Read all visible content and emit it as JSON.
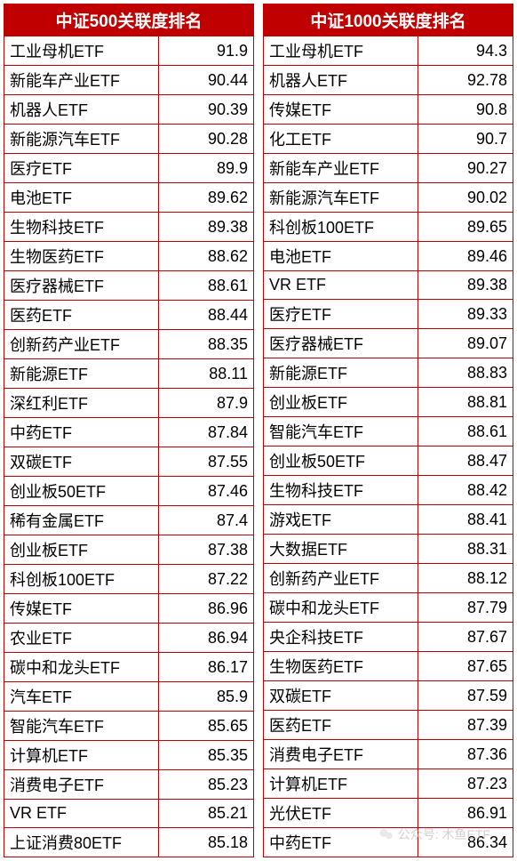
{
  "styling": {
    "header_bg": "#c00000",
    "header_text": "#ffffff",
    "border_color": "#c00000",
    "cell_text": "#000000",
    "background": "#ffffff",
    "font_family": "Microsoft YaHei",
    "header_fontsize": 19,
    "cell_fontsize": 18,
    "col_name_width_pct": 62,
    "col_val_width_pct": 38
  },
  "left_table": {
    "title": "中证500关联度排名",
    "rows": [
      {
        "name": "工业母机ETF",
        "val": "91.9"
      },
      {
        "name": "新能车产业ETF",
        "val": "90.44"
      },
      {
        "name": "机器人ETF",
        "val": "90.39"
      },
      {
        "name": "新能源汽车ETF",
        "val": "90.28"
      },
      {
        "name": "医疗ETF",
        "val": "89.9"
      },
      {
        "name": "电池ETF",
        "val": "89.62"
      },
      {
        "name": "生物科技ETF",
        "val": "89.38"
      },
      {
        "name": "生物医药ETF",
        "val": "88.62"
      },
      {
        "name": "医疗器械ETF",
        "val": "88.61"
      },
      {
        "name": "医药ETF",
        "val": "88.44"
      },
      {
        "name": "创新药产业ETF",
        "val": "88.35"
      },
      {
        "name": "新能源ETF",
        "val": "88.11"
      },
      {
        "name": "深红利ETF",
        "val": "87.9"
      },
      {
        "name": "中药ETF",
        "val": "87.84"
      },
      {
        "name": "双碳ETF",
        "val": "87.55"
      },
      {
        "name": "创业板50ETF",
        "val": "87.46"
      },
      {
        "name": "稀有金属ETF",
        "val": "87.4"
      },
      {
        "name": "创业板ETF",
        "val": "87.38"
      },
      {
        "name": "科创板100ETF",
        "val": "87.22"
      },
      {
        "name": "传媒ETF",
        "val": "86.96"
      },
      {
        "name": "农业ETF",
        "val": "86.94"
      },
      {
        "name": "碳中和龙头ETF",
        "val": "86.17"
      },
      {
        "name": "汽车ETF",
        "val": "85.9"
      },
      {
        "name": "智能汽车ETF",
        "val": "85.65"
      },
      {
        "name": "计算机ETF",
        "val": "85.35"
      },
      {
        "name": "消费电子ETF",
        "val": "85.23"
      },
      {
        "name": "VR ETF",
        "val": "85.21"
      },
      {
        "name": "上证消费80ETF",
        "val": "85.18"
      }
    ]
  },
  "right_table": {
    "title": "中证1000关联度排名",
    "rows": [
      {
        "name": "工业母机ETF",
        "val": "94.3"
      },
      {
        "name": "机器人ETF",
        "val": "92.78"
      },
      {
        "name": "传媒ETF",
        "val": "90.8"
      },
      {
        "name": "化工ETF",
        "val": "90.7"
      },
      {
        "name": "新能车产业ETF",
        "val": "90.27"
      },
      {
        "name": "新能源汽车ETF",
        "val": "90.02"
      },
      {
        "name": "科创板100ETF",
        "val": "89.65"
      },
      {
        "name": "电池ETF",
        "val": "89.46"
      },
      {
        "name": "VR ETF",
        "val": "89.38"
      },
      {
        "name": "医疗ETF",
        "val": "89.33"
      },
      {
        "name": "医疗器械ETF",
        "val": "89.07"
      },
      {
        "name": "新能源ETF",
        "val": "88.83"
      },
      {
        "name": "创业板ETF",
        "val": "88.81"
      },
      {
        "name": "智能汽车ETF",
        "val": "88.61"
      },
      {
        "name": "创业板50ETF",
        "val": "88.47"
      },
      {
        "name": "生物科技ETF",
        "val": "88.42"
      },
      {
        "name": "游戏ETF",
        "val": "88.41"
      },
      {
        "name": "大数据ETF",
        "val": "88.31"
      },
      {
        "name": "创新药产业ETF",
        "val": "88.12"
      },
      {
        "name": "碳中和龙头ETF",
        "val": "87.79"
      },
      {
        "name": "央企科技ETF",
        "val": "87.67"
      },
      {
        "name": "生物医药ETF",
        "val": "87.65"
      },
      {
        "name": "双碳ETF",
        "val": "87.59"
      },
      {
        "name": "医药ETF",
        "val": "87.39"
      },
      {
        "name": "消费电子ETF",
        "val": "87.36"
      },
      {
        "name": "计算机ETF",
        "val": "87.23"
      },
      {
        "name": "光伏ETF",
        "val": "86.91"
      },
      {
        "name": "中药ETF",
        "val": "86.34"
      }
    ]
  },
  "watermark": {
    "text": "公众号: 木鱼ETF"
  }
}
